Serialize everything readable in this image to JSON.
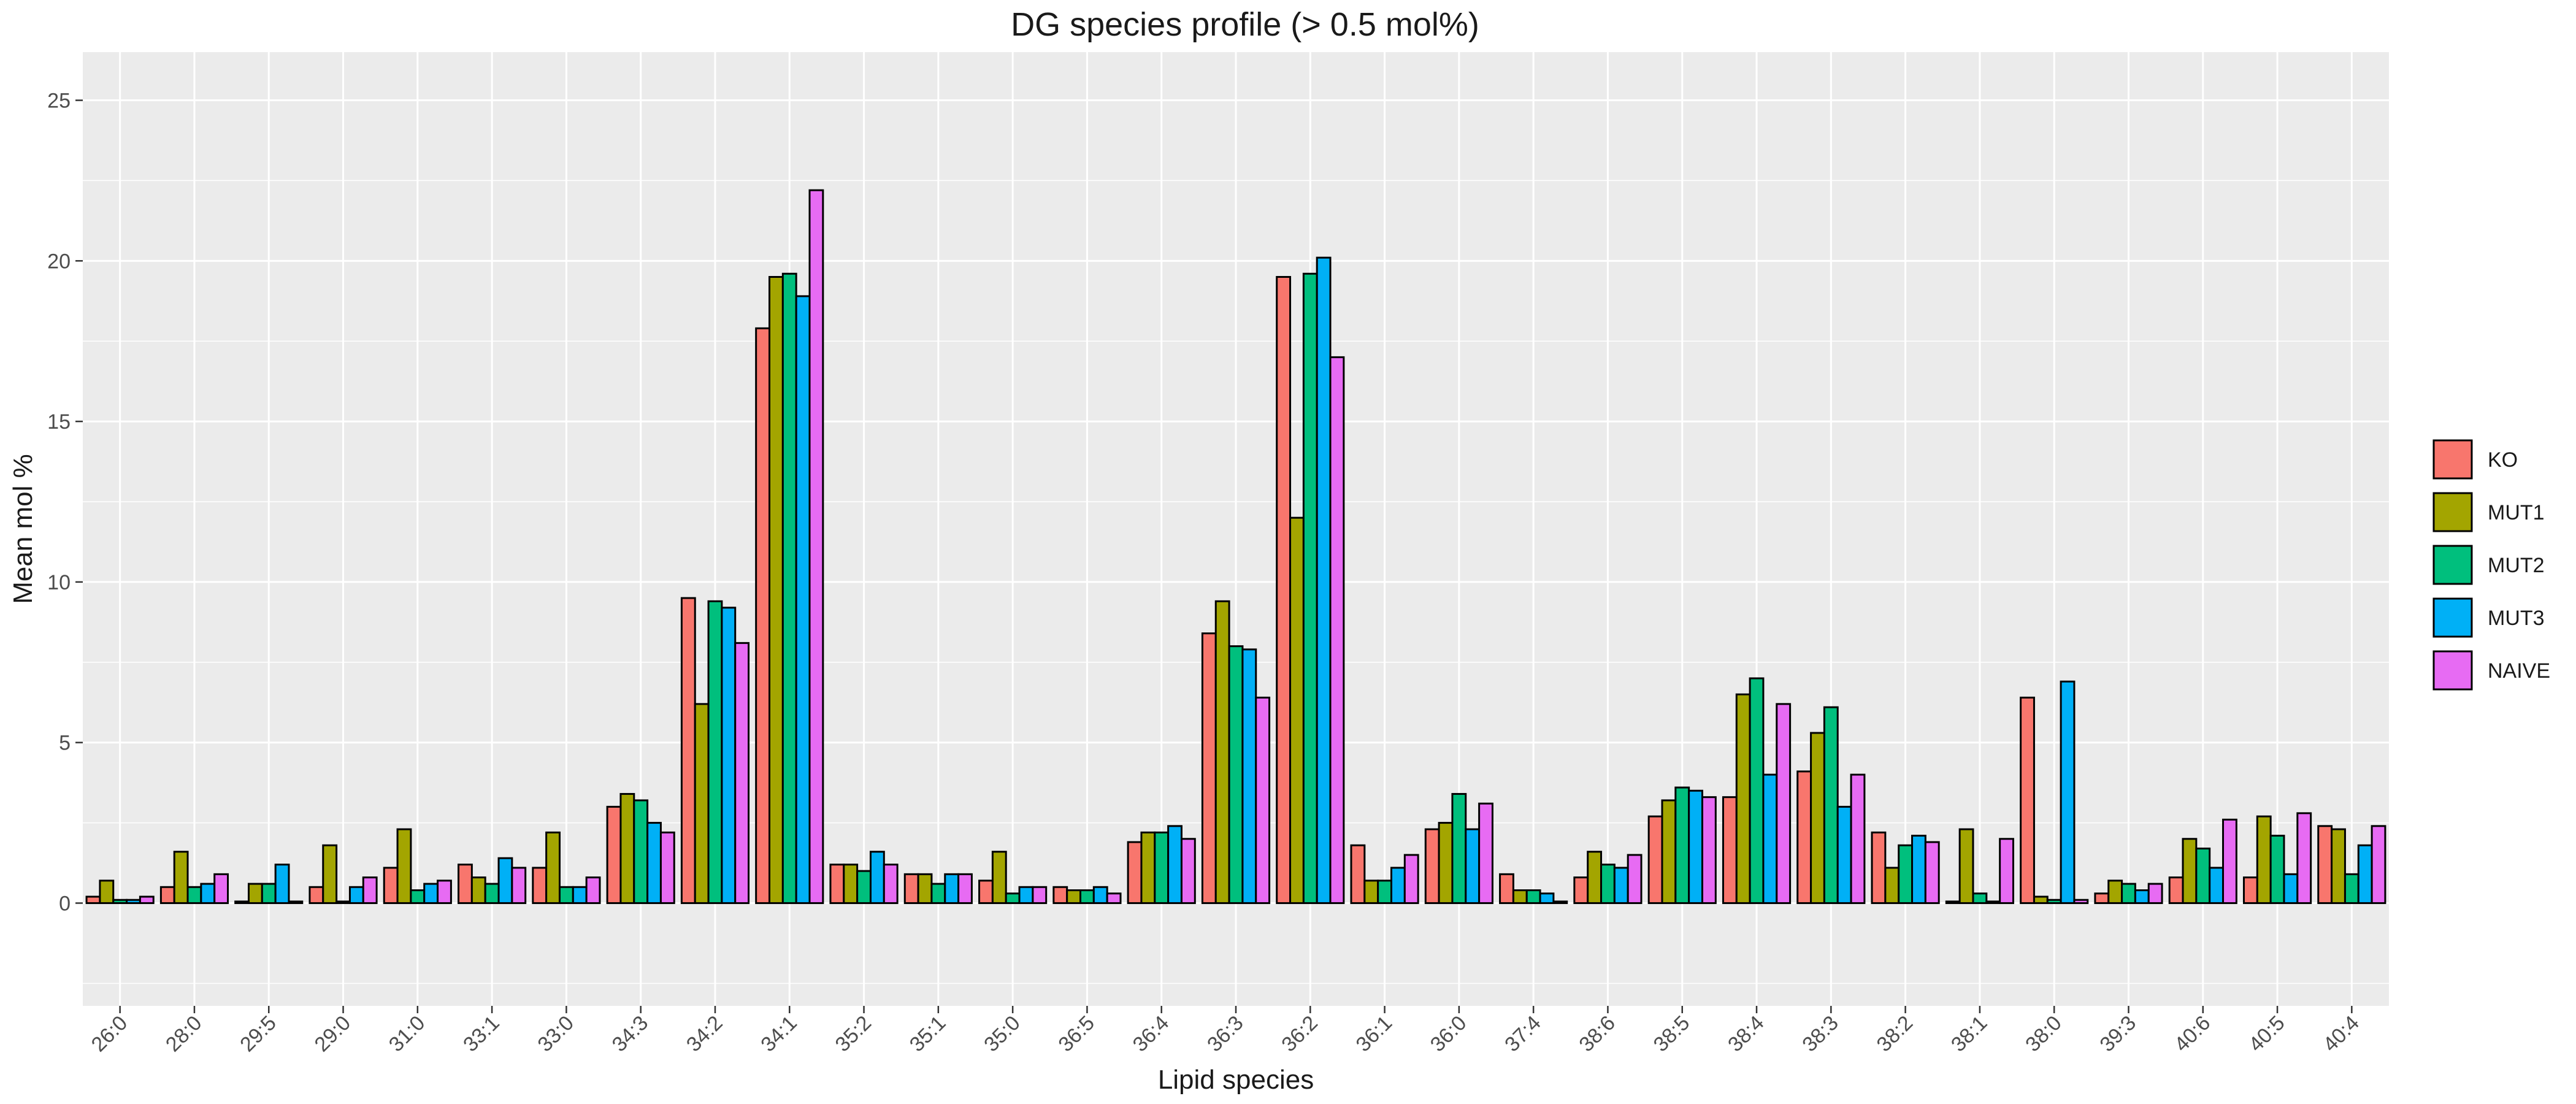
{
  "chart_data": {
    "type": "bar",
    "title": "DG species profile (> 0.5 mol%)",
    "xlabel": "Lipid species",
    "ylabel": "Mean mol %",
    "ylim": [
      -3.2,
      26.5
    ],
    "yticks": [
      0,
      5,
      10,
      15,
      20,
      25
    ],
    "grid": true,
    "legend_position": "right",
    "categories": [
      "26:0",
      "28:0",
      "29:5",
      "29:0",
      "31:0",
      "33:1",
      "33:0",
      "34:3",
      "34:2",
      "34:1",
      "35:2",
      "35:1",
      "35:0",
      "36:5",
      "36:4",
      "36:3",
      "36:2",
      "36:1",
      "36:0",
      "37:4",
      "38:6",
      "38:5",
      "38:4",
      "38:3",
      "38:2",
      "38:1",
      "38:0",
      "39:3",
      "40:6",
      "40:5",
      "40:4"
    ],
    "series": [
      {
        "name": "KO",
        "color": "#F8766D",
        "values": [
          0.2,
          0.5,
          0.05,
          0.5,
          1.1,
          1.2,
          1.1,
          3.0,
          9.5,
          17.9,
          1.2,
          0.9,
          0.7,
          0.5,
          1.9,
          8.4,
          19.5,
          1.8,
          2.3,
          0.9,
          0.8,
          2.7,
          3.3,
          4.1,
          2.2,
          0.05,
          6.4,
          0.3,
          0.8,
          0.8,
          2.4
        ]
      },
      {
        "name": "MUT1",
        "color": "#A3A500",
        "values": [
          0.7,
          1.6,
          0.6,
          1.8,
          2.3,
          0.8,
          2.2,
          3.4,
          6.2,
          19.5,
          1.2,
          0.9,
          1.6,
          0.4,
          2.2,
          9.4,
          12.0,
          0.7,
          2.5,
          0.4,
          1.6,
          3.2,
          6.5,
          5.3,
          1.1,
          2.3,
          0.2,
          0.7,
          2.0,
          2.7,
          2.3
        ]
      },
      {
        "name": "MUT2",
        "color": "#00BF7D",
        "values": [
          0.1,
          0.5,
          0.6,
          0.05,
          0.4,
          0.6,
          0.5,
          3.2,
          9.4,
          19.6,
          1.0,
          0.6,
          0.3,
          0.4,
          2.2,
          8.0,
          19.6,
          0.7,
          3.4,
          0.4,
          1.2,
          3.6,
          7.0,
          6.1,
          1.8,
          0.3,
          0.1,
          0.6,
          1.7,
          2.1,
          0.9
        ]
      },
      {
        "name": "MUT3",
        "color": "#00B0F6",
        "values": [
          0.1,
          0.6,
          1.2,
          0.5,
          0.6,
          1.4,
          0.5,
          2.5,
          9.2,
          18.9,
          1.6,
          0.9,
          0.5,
          0.5,
          2.4,
          7.9,
          20.1,
          1.1,
          2.3,
          0.3,
          1.1,
          3.5,
          4.0,
          3.0,
          2.1,
          0.05,
          6.9,
          0.4,
          1.1,
          0.9,
          1.8
        ]
      },
      {
        "name": "NAIVE",
        "color": "#E76BF3",
        "values": [
          0.2,
          0.9,
          0.05,
          0.8,
          0.7,
          1.1,
          0.8,
          2.2,
          8.1,
          22.2,
          1.2,
          0.9,
          0.5,
          0.3,
          2.0,
          6.4,
          17.0,
          1.5,
          3.1,
          0.05,
          1.5,
          3.3,
          6.2,
          4.0,
          1.9,
          2.0,
          0.1,
          0.6,
          2.6,
          2.8,
          2.4
        ]
      }
    ]
  }
}
